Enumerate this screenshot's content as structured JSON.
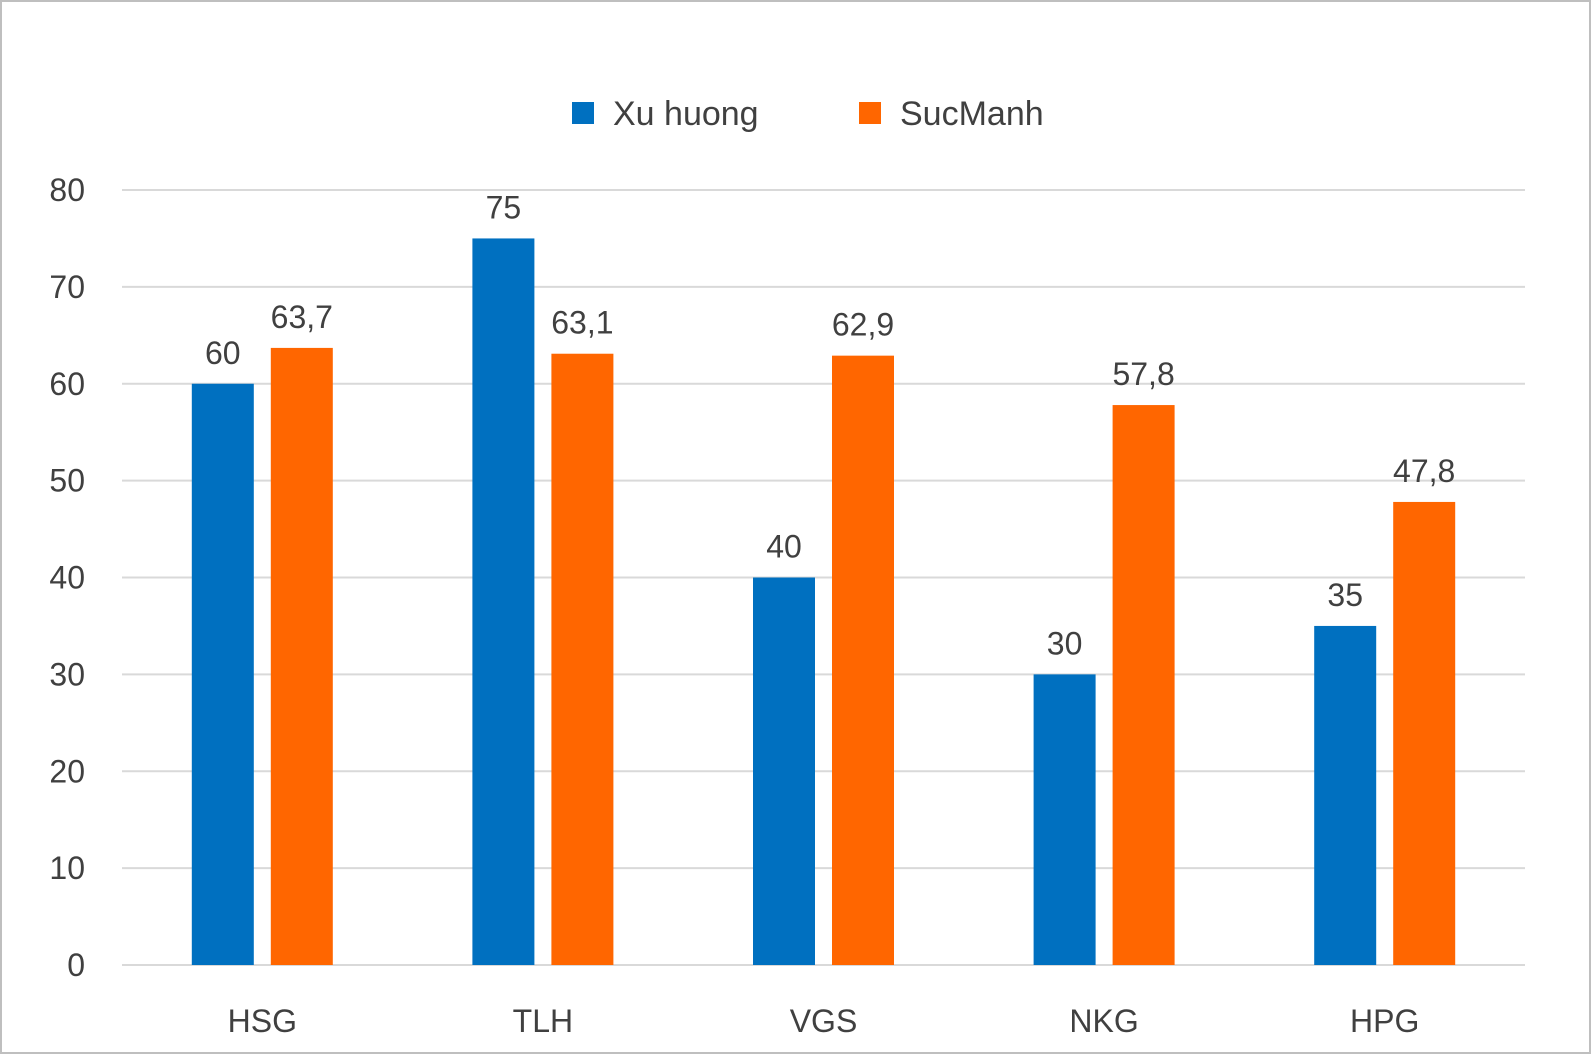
{
  "chart_data": {
    "type": "bar",
    "categories": [
      "HSG",
      "TLH",
      "VGS",
      "NKG",
      "HPG"
    ],
    "series": [
      {
        "name": "Xu huong",
        "color": "#0070C0",
        "values": [
          60,
          75,
          40,
          30,
          35
        ],
        "labels": [
          "60",
          "75",
          "40",
          "30",
          "35"
        ]
      },
      {
        "name": "SucManh",
        "color": "#FF6600",
        "values": [
          63.7,
          63.1,
          62.9,
          57.8,
          47.8
        ],
        "labels": [
          "63,7",
          "63,1",
          "62,9",
          "57,8",
          "47,8"
        ]
      }
    ],
    "ylim": [
      0,
      80
    ],
    "yticks": [
      0,
      10,
      20,
      30,
      40,
      50,
      60,
      70,
      80
    ],
    "grid": true,
    "gridColor": "#d9d9d9",
    "legend_position": "top",
    "title": "",
    "xlabel": "",
    "ylabel": ""
  }
}
